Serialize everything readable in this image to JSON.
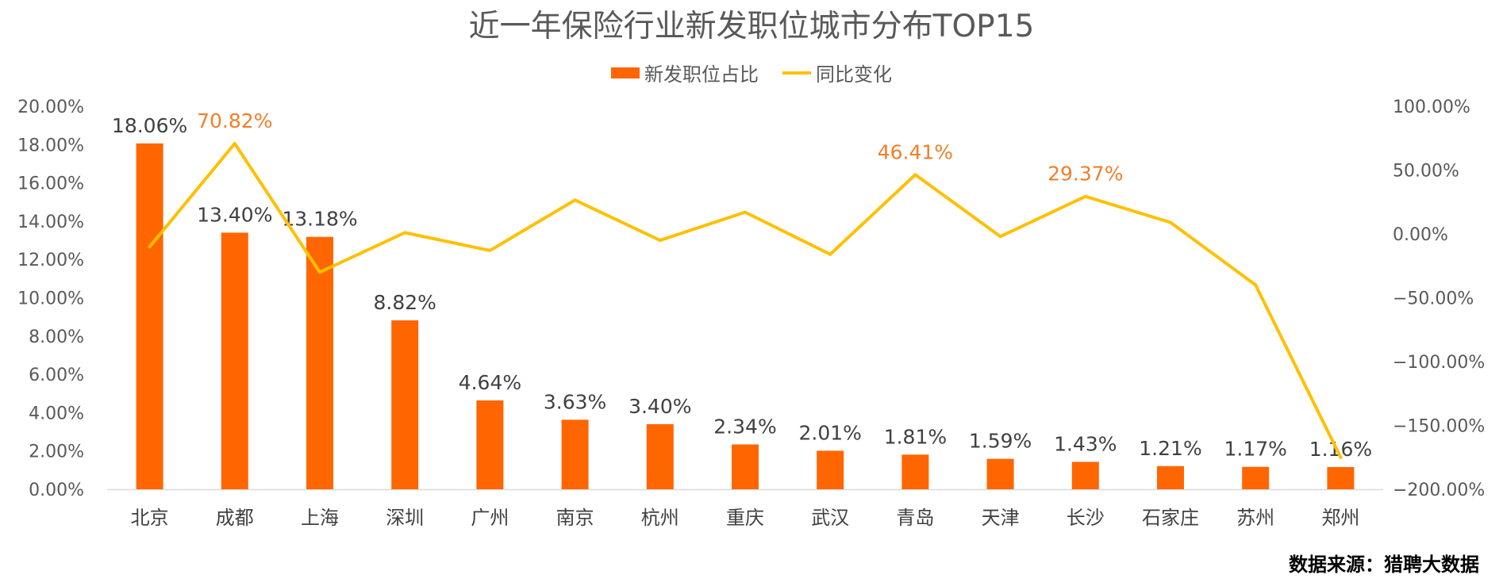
{
  "chart_data": {
    "type": "bar",
    "title": "近一年保险行业新发职位城市分布TOP15",
    "categories": [
      "北京",
      "成都",
      "上海",
      "深圳",
      "广州",
      "南京",
      "杭州",
      "重庆",
      "武汉",
      "青岛",
      "天津",
      "长沙",
      "石家庄",
      "苏州",
      "郑州"
    ],
    "series": [
      {
        "name": "新发职位占比",
        "type": "bar",
        "axis": "left",
        "color": "#FF6600",
        "values": [
          18.06,
          13.4,
          13.18,
          8.82,
          4.64,
          3.63,
          3.4,
          2.34,
          2.01,
          1.81,
          1.59,
          1.43,
          1.21,
          1.17,
          1.16
        ],
        "labels": [
          "18.06%",
          "13.40%",
          "13.18%",
          "8.82%",
          "4.64%",
          "3.63%",
          "3.40%",
          "2.34%",
          "2.01%",
          "1.81%",
          "1.59%",
          "1.43%",
          "1.21%",
          "1.17%",
          "1.16%"
        ]
      },
      {
        "name": "同比变化",
        "type": "line",
        "axis": "right",
        "color": "#FFC000",
        "values": [
          -10,
          70.82,
          -30,
          1,
          -13,
          26.5,
          -5,
          17,
          -16,
          46.41,
          -2,
          29.37,
          9,
          -40,
          -175
        ],
        "point_labels": [
          {
            "index": 1,
            "text": "70.82%"
          },
          {
            "index": 9,
            "text": "46.41%"
          },
          {
            "index": 11,
            "text": "29.37%"
          }
        ],
        "label_color": "#F07F28"
      }
    ],
    "y_left": {
      "ylim": [
        0,
        20
      ],
      "ticks": [
        "0.00%",
        "2.00%",
        "4.00%",
        "6.00%",
        "8.00%",
        "10.00%",
        "12.00%",
        "14.00%",
        "16.00%",
        "18.00%",
        "20.00%"
      ]
    },
    "y_right": {
      "ylim": [
        -200,
        100
      ],
      "ticks": [
        "−200.00%",
        "−150.00%",
        "−100.00%",
        "−50.00%",
        "0.00%",
        "50.00%",
        "100.00%"
      ]
    },
    "grid": false,
    "legend": "top-center"
  },
  "source": "数据来源：猎聘大数据"
}
